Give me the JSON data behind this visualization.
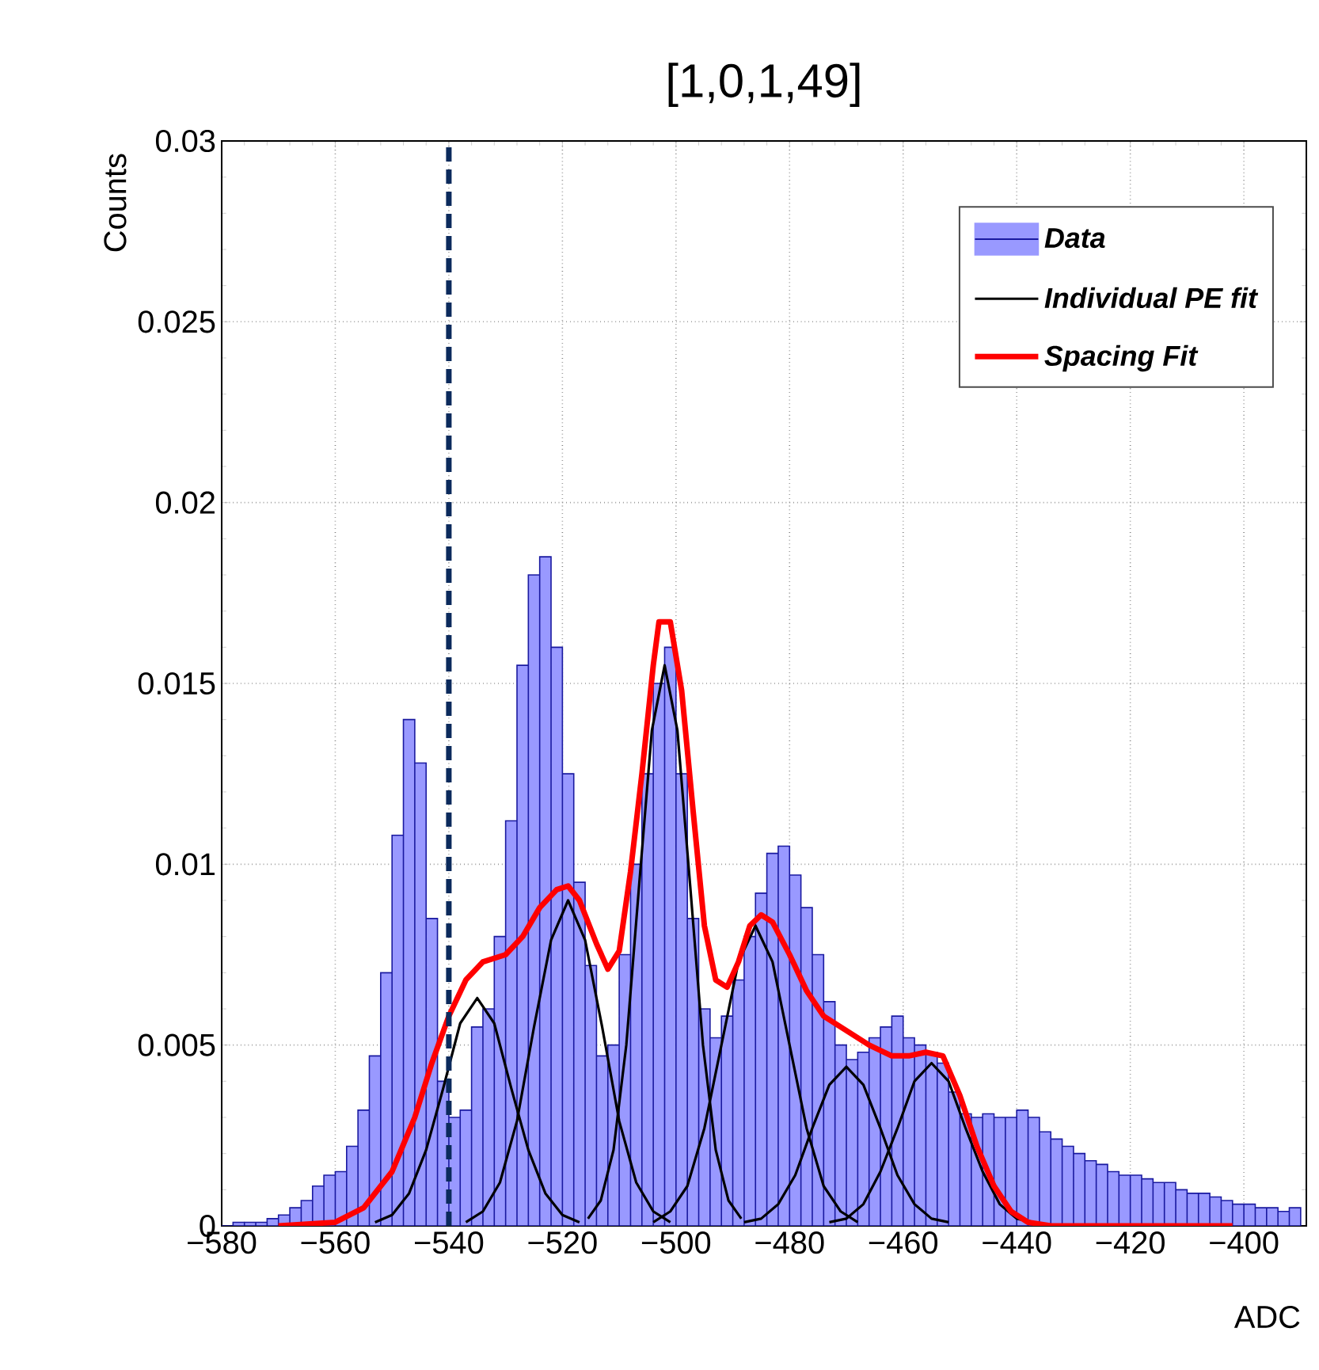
{
  "chart_data": {
    "type": "histogram",
    "title": "[1,0,1,49]",
    "xlabel": "ADC",
    "ylabel": "Counts",
    "xlim": [
      -580,
      -389
    ],
    "ylim": [
      0,
      0.03
    ],
    "xticks": [
      {
        "value": -580,
        "label": "−580"
      },
      {
        "value": -560,
        "label": "−560"
      },
      {
        "value": -540,
        "label": "−540"
      },
      {
        "value": -520,
        "label": "−520"
      },
      {
        "value": -500,
        "label": "−500"
      },
      {
        "value": -480,
        "label": "−480"
      },
      {
        "value": -460,
        "label": "−460"
      },
      {
        "value": -440,
        "label": "−440"
      },
      {
        "value": -420,
        "label": "−420"
      },
      {
        "value": -400,
        "label": "−400"
      }
    ],
    "yticks": [
      0,
      0.005,
      0.01,
      0.015,
      0.02,
      0.025,
      0.03
    ],
    "grid": true,
    "legend": "top right",
    "bins": [
      -580,
      -578,
      -576,
      -574,
      -572,
      -570,
      -568,
      -566,
      -564,
      -562,
      -560,
      -558,
      -556,
      -554,
      -552,
      -550,
      -548,
      -546,
      -544,
      -542,
      -540,
      -538,
      -536,
      -534,
      -532,
      -530,
      -528,
      -526,
      -524,
      -522,
      -520,
      -518,
      -516,
      -514,
      -512,
      -510,
      -508,
      -506,
      -504,
      -502,
      -500,
      -498,
      -496,
      -494,
      -492,
      -490,
      -488,
      -486,
      -484,
      -482,
      -480,
      -478,
      -476,
      -474,
      -472,
      -470,
      -468,
      -466,
      -464,
      -462,
      -460,
      -458,
      -456,
      -454,
      -452,
      -450,
      -448,
      -446,
      -444,
      -442,
      -440,
      -438,
      -436,
      -434,
      -432,
      -430,
      -428,
      -426,
      -424,
      -422,
      -420,
      -418,
      -416,
      -414,
      -412,
      -410,
      -408,
      -406,
      -404,
      -402,
      -400,
      -398,
      -396,
      -394,
      -392,
      -390
    ],
    "series": [
      {
        "name": "Data",
        "color": "#9999ff",
        "values": [
          0,
          0.0001,
          0.0001,
          0.0001,
          0.0002,
          0.0003,
          0.0005,
          0.0007,
          0.0011,
          0.0014,
          0.0015,
          0.0022,
          0.0032,
          0.0047,
          0.007,
          0.0108,
          0.014,
          0.0128,
          0.0085,
          0.004,
          0.003,
          0.0032,
          0.0055,
          0.006,
          0.008,
          0.0112,
          0.0155,
          0.018,
          0.0185,
          0.016,
          0.0125,
          0.0095,
          0.0072,
          0.0047,
          0.005,
          0.0075,
          0.01,
          0.0125,
          0.015,
          0.016,
          0.0125,
          0.0085,
          0.006,
          0.0052,
          0.0058,
          0.0068,
          0.008,
          0.0092,
          0.0103,
          0.0105,
          0.0097,
          0.0088,
          0.0075,
          0.0062,
          0.005,
          0.0046,
          0.0048,
          0.0052,
          0.0055,
          0.0058,
          0.0052,
          0.005,
          0.0048,
          0.0045,
          0.0037,
          0.0031,
          0.003,
          0.0031,
          0.003,
          0.003,
          0.0032,
          0.003,
          0.0026,
          0.0024,
          0.0022,
          0.002,
          0.0018,
          0.0017,
          0.0015,
          0.0014,
          0.0014,
          0.0013,
          0.0012,
          0.0012,
          0.001,
          0.0009,
          0.0009,
          0.0008,
          0.0007,
          0.0006,
          0.0006,
          0.0005,
          0.0005,
          0.0004,
          0.0005
        ]
      },
      {
        "name": "Individual PE fit",
        "type": "line",
        "color": "#000000",
        "x": [
          -553,
          -550,
          -547,
          -544,
          -541,
          -538,
          -535,
          -532,
          -529,
          -526,
          -523,
          -520,
          -517
        ],
        "values": [
          0.0001,
          0.0003,
          0.0009,
          0.0021,
          0.0038,
          0.0056,
          0.0063,
          0.0056,
          0.0038,
          0.0021,
          0.0009,
          0.0003,
          0.0001
        ]
      },
      {
        "type": "line",
        "color": "#000000",
        "x": [
          -537,
          -534,
          -531,
          -528,
          -525,
          -522,
          -519,
          -516,
          -513,
          -510,
          -507,
          -504,
          -501
        ],
        "values": [
          0.0001,
          0.0004,
          0.0012,
          0.0029,
          0.0055,
          0.0079,
          0.009,
          0.0079,
          0.0055,
          0.0029,
          0.0012,
          0.0004,
          0.0001
        ]
      },
      {
        "type": "line",
        "color": "#000000",
        "x": [
          -515.5,
          -513.25,
          -511,
          -508.75,
          -506.5,
          -504.25,
          -502,
          -499.75,
          -497.5,
          -495.25,
          -493,
          -490.75,
          -488.5
        ],
        "values": [
          0.0002,
          0.0007,
          0.0021,
          0.005,
          0.0094,
          0.0137,
          0.0155,
          0.0137,
          0.0094,
          0.005,
          0.0021,
          0.0007,
          0.0002
        ]
      },
      {
        "type": "line",
        "color": "#000000",
        "x": [
          -504,
          -501,
          -498,
          -495,
          -492,
          -489,
          -486,
          -483,
          -480,
          -477,
          -474,
          -471,
          -468
        ],
        "values": [
          0.0001,
          0.0004,
          0.0011,
          0.0027,
          0.005,
          0.0073,
          0.0083,
          0.0073,
          0.005,
          0.0027,
          0.0011,
          0.0004,
          0.0001
        ]
      },
      {
        "type": "line",
        "color": "#000000",
        "x": [
          -488,
          -485,
          -482,
          -479,
          -476,
          -473,
          -470,
          -467,
          -464,
          -461,
          -458,
          -455,
          -452
        ],
        "values": [
          0.0001,
          0.0002,
          0.0006,
          0.0014,
          0.0027,
          0.0039,
          0.0044,
          0.0039,
          0.0027,
          0.0014,
          0.0006,
          0.0002,
          0.0001
        ]
      },
      {
        "type": "line",
        "color": "#000000",
        "x": [
          -473,
          -470,
          -467,
          -464,
          -461,
          -458,
          -455,
          -452,
          -449,
          -446,
          -443,
          -440,
          -437
        ],
        "values": [
          0.0001,
          0.0002,
          0.0006,
          0.0015,
          0.0027,
          0.004,
          0.0045,
          0.004,
          0.0027,
          0.0015,
          0.0006,
          0.0002,
          0.0001
        ]
      },
      {
        "name": "Spacing Fit",
        "type": "line",
        "color": "#ff0000",
        "x": [
          -570,
          -560,
          -555,
          -550,
          -546,
          -543,
          -540,
          -537,
          -534,
          -530,
          -527,
          -524,
          -521,
          -519,
          -517,
          -514,
          -512,
          -510,
          -508,
          -506,
          -504,
          -503,
          -501,
          -499,
          -497,
          -495,
          -493,
          -491,
          -489,
          -487,
          -485,
          -483,
          -480,
          -477,
          -474,
          -470,
          -466,
          -462,
          -459,
          -456,
          -453,
          -450,
          -447,
          -444,
          -441,
          -438,
          -434,
          -420,
          -402
        ],
        "values": [
          0,
          0.0001,
          0.0005,
          0.0015,
          0.003,
          0.0045,
          0.0058,
          0.0068,
          0.0073,
          0.0075,
          0.008,
          0.0088,
          0.0093,
          0.0094,
          0.009,
          0.0078,
          0.0071,
          0.0076,
          0.0098,
          0.0125,
          0.0155,
          0.0167,
          0.0167,
          0.0148,
          0.0115,
          0.0083,
          0.0068,
          0.0066,
          0.0073,
          0.0083,
          0.0086,
          0.0084,
          0.0075,
          0.0065,
          0.0058,
          0.0054,
          0.005,
          0.0047,
          0.0047,
          0.0048,
          0.0047,
          0.0036,
          0.0022,
          0.0011,
          0.0004,
          0.0001,
          0,
          0,
          0
        ]
      }
    ],
    "ref_lines": [
      {
        "axis": "x",
        "value": -540,
        "color": "#0b2a5c",
        "line_style": "dashed"
      }
    ]
  }
}
